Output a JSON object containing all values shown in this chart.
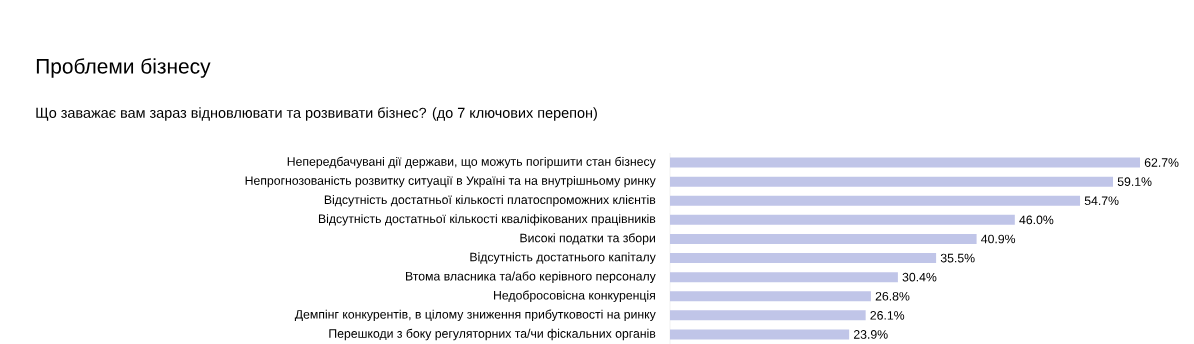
{
  "chart_data": {
    "type": "bar",
    "orientation": "horizontal",
    "title": "Проблеми бізнесу",
    "subtitle": "Що заважає вам зараз відновлювати та розвивати бізнес? (до 7 ключових перепон)",
    "categories": [
      "Непередбачувані дії держави, що можуть погіршити стан бізнесу",
      "Непрогнозованість розвитку ситуації в Україні та на внутрішньому ринку",
      "Відсутність достатньої кількості платоспроможних клієнтів",
      "Відсутність достатньої кількості кваліфікованих працівників",
      "Високі податки та збори",
      "Відсутність достатнього капіталу",
      "Втома власника та/або керівного персоналу",
      "Недобросовісна конкуренція",
      "Демпінг конкурентів, в цілому зниження прибутковості на ринку",
      "Перешкоди з боку регуляторних та/чи фіскальних органів"
    ],
    "values": [
      62.7,
      59.1,
      54.7,
      46.0,
      40.9,
      35.5,
      30.4,
      26.8,
      26.1,
      23.9
    ],
    "value_labels": [
      "62.7%",
      "59.1%",
      "54.7%",
      "46.0%",
      "40.9%",
      "35.5%",
      "30.4%",
      "26.8%",
      "26.1%",
      "23.9%"
    ],
    "color": "#c0c5e8"
  }
}
